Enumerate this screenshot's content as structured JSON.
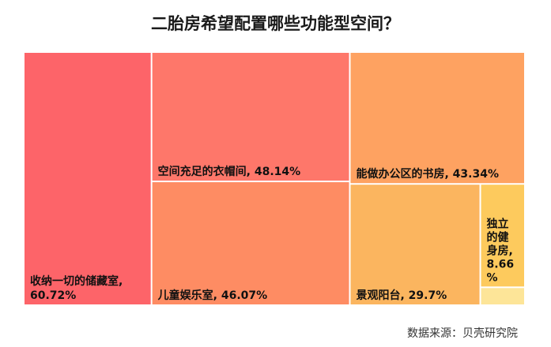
{
  "title": "二胎房希望配置哪些功能型空间？",
  "source": "数据来源：贝壳研究院",
  "chart_data": {
    "type": "treemap",
    "title": "二胎房希望配置哪些功能型空间？",
    "items": [
      {
        "name": "收纳一切的储藏室",
        "value": 60.72,
        "label": "收纳一切的储藏室,",
        "value_label": "60.72%",
        "color": "#fd6469"
      },
      {
        "name": "空间充足的衣帽间",
        "value": 48.14,
        "label": "空间充足的衣帽间, 48.14%",
        "color": "#fe776a"
      },
      {
        "name": "儿童娱乐室",
        "value": 46.07,
        "label": "儿童娱乐室, 46.07%",
        "color": "#fe8c63"
      },
      {
        "name": "能做办公区的书房",
        "value": 43.34,
        "label": "能做办公区的书房, 43.34%",
        "color": "#fea261"
      },
      {
        "name": "景观阳台",
        "value": 29.7,
        "label": "景观阳台, 29.7%",
        "color": "#fbb55f"
      },
      {
        "name": "独立的健身房",
        "value": 8.66,
        "label_lines": [
          "独立",
          "的健",
          "身房,",
          "8.66",
          "%"
        ],
        "color": "#fdca5d"
      },
      {
        "name": "",
        "value": 1.5,
        "color": "#fde598"
      }
    ]
  }
}
